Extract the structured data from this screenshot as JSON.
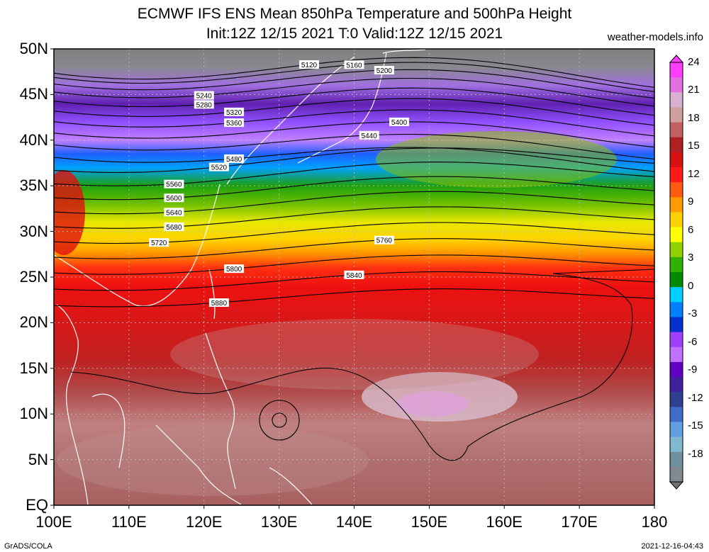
{
  "title_line1": "ECMWF IFS ENS Mean 850hPa Temperature and 500hPa Height",
  "title_line2": "Init:12Z 12/15 2021  T:0 Valid:12Z 12/15 2021",
  "site": "weather-models.info",
  "footer_left": "GrADS/COLA",
  "footer_right": "2021-12-16-04:43",
  "map": {
    "lat_labels": [
      "50N",
      "45N",
      "40N",
      "35N",
      "30N",
      "25N",
      "20N",
      "15N",
      "10N",
      "5N",
      "EQ"
    ],
    "lon_labels": [
      "100E",
      "110E",
      "120E",
      "130E",
      "140E",
      "150E",
      "160E",
      "170E",
      "180"
    ],
    "colorbar_labels": [
      "24",
      "21",
      "18",
      "15",
      "12",
      "9",
      "6",
      "3",
      "0",
      "-3",
      "-6",
      "-9",
      "-12",
      "-15",
      "-18"
    ],
    "colorbar_colors": [
      "#ff3cff",
      "#e070e0",
      "#d8b0d0",
      "#d0a0a0",
      "#c06060",
      "#b02020",
      "#d81010",
      "#ff1a1a",
      "#ff5a10",
      "#ff9a00",
      "#ffd000",
      "#ffff00",
      "#90d000",
      "#30b000",
      "#008a00",
      "#00d0ff",
      "#0080ff",
      "#0030d0",
      "#a040ff",
      "#c070ff",
      "#6000c0",
      "#40209c",
      "#304090",
      "#406cc8",
      "#60a0e0",
      "#80b8d0",
      "#7090a0",
      "#808890"
    ],
    "height_labels": [
      {
        "text": "5120"
      },
      {
        "text": "5160"
      },
      {
        "text": "5200"
      },
      {
        "text": "5240"
      },
      {
        "text": "5280"
      },
      {
        "text": "5320"
      },
      {
        "text": "5360"
      },
      {
        "text": "5400"
      },
      {
        "text": "5440"
      },
      {
        "text": "5480"
      },
      {
        "text": "5520"
      },
      {
        "text": "5560"
      },
      {
        "text": "5600"
      },
      {
        "text": "5640"
      },
      {
        "text": "5680"
      },
      {
        "text": "5720"
      },
      {
        "text": "5760"
      },
      {
        "text": "5800"
      },
      {
        "text": "5840"
      },
      {
        "text": "5880"
      }
    ]
  }
}
